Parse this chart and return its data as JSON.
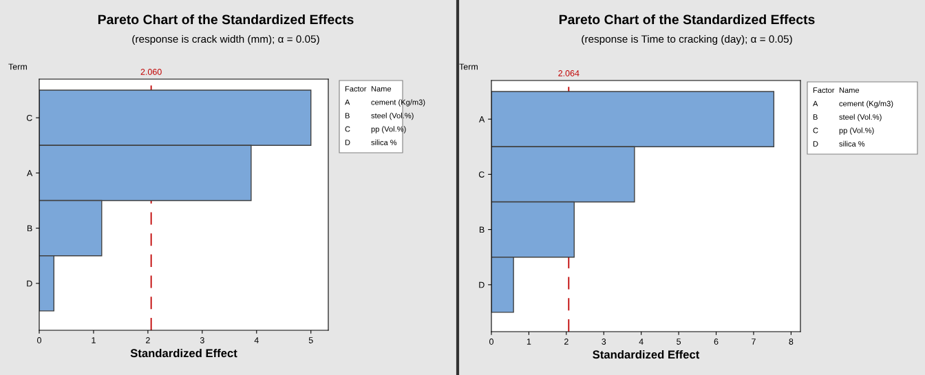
{
  "chart_data": [
    {
      "type": "bar",
      "orientation": "horizontal",
      "title": "Pareto Chart of the Standardized Effects",
      "subtitle": "(response is crack width (mm); α = 0.05)",
      "xlabel": "Standardized Effect",
      "ylabel": "Term",
      "categories": [
        "C",
        "A",
        "B",
        "D"
      ],
      "values": [
        5.0,
        3.9,
        1.15,
        0.27
      ],
      "color": "#7ba7d9",
      "xlim": [
        0,
        5.32
      ],
      "xticks": [
        0,
        1,
        2,
        3,
        4,
        5
      ],
      "grid": false,
      "legend": false,
      "ref_lines": [
        {
          "axis": "x",
          "value": 2.06,
          "label": "2.060",
          "color": "#c00000",
          "line_style": "dashed"
        }
      ],
      "annotations": [
        "Factor",
        "Name",
        "A",
        "cement (Kg/m3)",
        "B",
        "steel (Vol.%)",
        "C",
        "pp (Vol.%)",
        "D",
        "silica %"
      ]
    },
    {
      "type": "bar",
      "orientation": "horizontal",
      "title": "Pareto Chart of the Standardized Effects",
      "subtitle": "(response is Time to cracking (day); α = 0.05)",
      "xlabel": "Standardized Effect",
      "ylabel": "Term",
      "categories": [
        "A",
        "C",
        "B",
        "D"
      ],
      "values": [
        7.54,
        3.82,
        2.21,
        0.59
      ],
      "color": "#7ba7d9",
      "xlim": [
        0,
        8.25
      ],
      "xticks": [
        0,
        1,
        2,
        3,
        4,
        5,
        6,
        7,
        8
      ],
      "grid": false,
      "legend": false,
      "ref_lines": [
        {
          "axis": "x",
          "value": 2.064,
          "label": "2.064",
          "color": "#c00000",
          "line_style": "dashed"
        }
      ],
      "annotations": [
        "Factor",
        "Name",
        "A",
        "cement (Kg/m3)",
        "B",
        "steel (Vol.%)",
        "C",
        "pp (Vol.%)",
        "D",
        "silica %"
      ]
    }
  ]
}
